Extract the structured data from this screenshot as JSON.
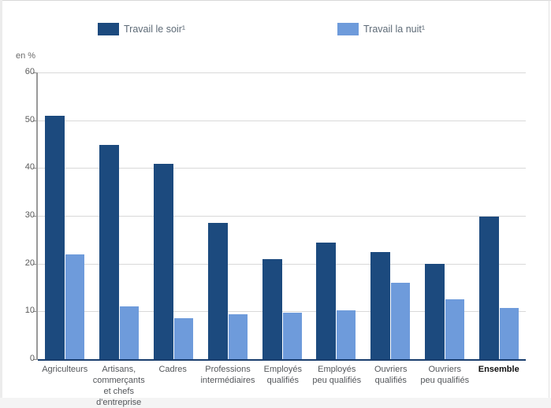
{
  "chart_data": {
    "type": "bar",
    "ylabel": "en %",
    "ylim": [
      0,
      60
    ],
    "ytick_step": 10,
    "grid": true,
    "legend_position": "top",
    "categories": [
      "Agriculteurs",
      "Artisans,\ncommerçants\net chefs d'entreprise",
      "Cadres",
      "Professions\nintermédiaires",
      "Employés\nqualifiés",
      "Employés\npeu qualifiés",
      "Ouvriers\nqualifiés",
      "Ouvriers\npeu qualifiés",
      "Ensemble"
    ],
    "bold_categories": [
      "Ensemble"
    ],
    "series": [
      {
        "name": "Travail le soir¹",
        "color": "#1c4a7e",
        "values": [
          50.9,
          44.9,
          40.8,
          28.5,
          21.0,
          24.4,
          22.5,
          20.0,
          29.9
        ]
      },
      {
        "name": "Travail la nuit¹",
        "color": "#6e9bdb",
        "values": [
          21.9,
          11.1,
          8.6,
          9.4,
          9.7,
          10.2,
          16.0,
          12.5,
          10.7
        ]
      }
    ]
  },
  "colors": {
    "evening_bar": "#1c4a7e",
    "night_bar": "#6e9bdb",
    "x_axis_line": "#1a3e6e"
  }
}
